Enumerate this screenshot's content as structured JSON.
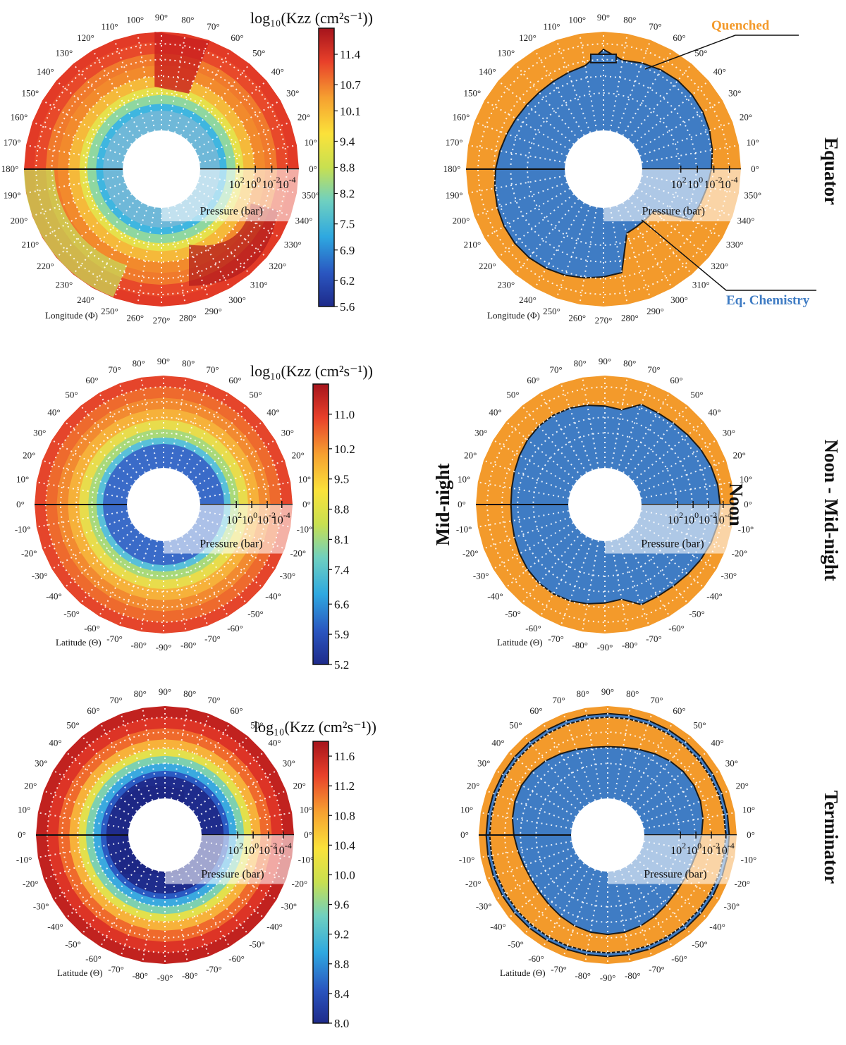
{
  "chart_data": [
    {
      "type": "polar-contour",
      "panel": "equator-kzz",
      "angle_label": "Longitude (Φ)",
      "angle_ticks": [
        "0°",
        "10°",
        "20°",
        "30°",
        "40°",
        "50°",
        "60°",
        "70°",
        "80°",
        "90°",
        "100°",
        "110°",
        "120°",
        "130°",
        "140°",
        "150°",
        "160°",
        "170°",
        "180°",
        "190°",
        "200°",
        "210°",
        "220°",
        "230°",
        "240°",
        "250°",
        "260°",
        "270°",
        "280°",
        "290°",
        "300°",
        "310°",
        "320°",
        "330°",
        "340°",
        "350°"
      ],
      "radial_label": "Pressure (bar)",
      "radial_ticks": [
        "10",
        "10",
        "10",
        "10"
      ],
      "radial_exponents": [
        "2",
        "0",
        "-2",
        "-4"
      ],
      "colorbar_title": "log₁₀(Kzz (cm²s⁻¹))",
      "colorbar_ticks": [
        "11.4",
        "10.7",
        "10.1",
        "9.4",
        "8.8",
        "8.2",
        "7.5",
        "6.9",
        "6.2",
        "5.6"
      ],
      "colorbar_range": [
        5.6,
        12.0
      ]
    },
    {
      "type": "polar-contour",
      "panel": "noon-midnight-kzz",
      "angle_label": "Latitude (Θ)",
      "angle_ticks": [
        "0°",
        "10°",
        "20°",
        "30°",
        "40°",
        "50°",
        "60°",
        "70°",
        "80°",
        "90°",
        "80°",
        "70°",
        "60°",
        "50°",
        "40°",
        "30°",
        "20°",
        "10°",
        "0°",
        "-10°",
        "-20°",
        "-30°",
        "-40°",
        "-50°",
        "-60°",
        "-70°",
        "-80°",
        "-90°",
        "-80°",
        "-70°",
        "-60°",
        "-50°",
        "-40°",
        "-30°",
        "-20°",
        "-10°"
      ],
      "radial_label": "Pressure (bar)",
      "radial_ticks": [
        "10",
        "10",
        "10",
        "10"
      ],
      "radial_exponents": [
        "2",
        "0",
        "-2",
        "-4"
      ],
      "colorbar_title": "log₁₀(Kzz (cm²s⁻¹))",
      "colorbar_ticks": [
        "11.0",
        "10.2",
        "9.5",
        "8.8",
        "8.1",
        "7.4",
        "6.6",
        "5.9",
        "5.2"
      ],
      "colorbar_range": [
        5.2,
        11.7
      ]
    },
    {
      "type": "polar-contour",
      "panel": "terminator-kzz",
      "angle_label": "Latitude (Θ)",
      "angle_ticks": [
        "0°",
        "10°",
        "20°",
        "30°",
        "40°",
        "50°",
        "60°",
        "70°",
        "80°",
        "90°",
        "80°",
        "70°",
        "60°",
        "50°",
        "40°",
        "30°",
        "20°",
        "10°",
        "0°",
        "-10°",
        "-20°",
        "-30°",
        "-40°",
        "-50°",
        "-60°",
        "-70°",
        "-80°",
        "-90°",
        "-80°",
        "-70°",
        "-60°",
        "-50°",
        "-40°",
        "-30°",
        "-20°",
        "-10°"
      ],
      "radial_label": "Pressure (bar)",
      "radial_ticks": [
        "10",
        "10",
        "10",
        "10"
      ],
      "radial_exponents": [
        "2",
        "0",
        "-2",
        "-4"
      ],
      "colorbar_title": "log₁₀(Kzz (cm²s⁻¹))",
      "colorbar_ticks": [
        "11.6",
        "11.2",
        "10.8",
        "10.4",
        "10.0",
        "9.6",
        "9.2",
        "8.8",
        "8.4",
        "8.0"
      ],
      "colorbar_range": [
        8.0,
        11.8
      ]
    },
    {
      "type": "polar-region",
      "panel": "equator-quench",
      "angle_label": "Longitude (Φ)",
      "radial_label": "Pressure (bar)",
      "categories": [
        "Quenched",
        "Eq. Chemistry"
      ]
    },
    {
      "type": "polar-region",
      "panel": "noon-midnight-quench",
      "angle_label": "Latitude (Θ)",
      "radial_label": "Pressure (bar)",
      "categories": [
        "Quenched",
        "Eq. Chemistry"
      ]
    },
    {
      "type": "polar-region",
      "panel": "terminator-quench",
      "angle_label": "Latitude (Θ)",
      "radial_label": "Pressure (bar)",
      "categories": [
        "Quenched",
        "Eq. Chemistry"
      ]
    }
  ],
  "labels": {
    "row1": "Equator",
    "row2": "Noon - Mid-night",
    "noon": "Noon",
    "midnight": "Mid-night",
    "row3": "Terminator",
    "quenched": "Quenched",
    "eqchem": "Eq. Chemistry"
  },
  "colors": {
    "orange": "#f39a2b",
    "blue": "#3f7cc4",
    "outline": "#1a1a1a"
  }
}
